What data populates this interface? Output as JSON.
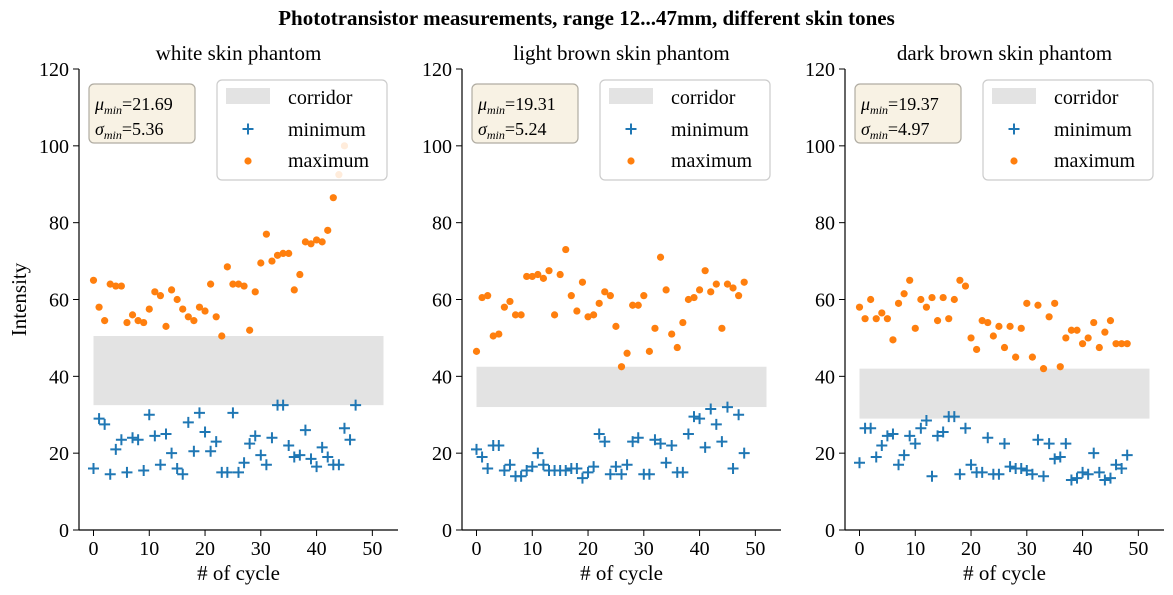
{
  "suptitle": "Phototransistor measurements, range 12...47mm, different skin tones",
  "legend_labels": {
    "corridor": "corridor",
    "minimum": "minimum",
    "maximum": "maximum"
  },
  "colors": {
    "minimum": "#1f77b4",
    "maximum": "#ff7f0e",
    "corridor": "#e3e3e3",
    "statsbox_fill": "#f8f2e4",
    "statsbox_edge": "#b0aca2"
  },
  "chart_data": [
    {
      "type": "scatter",
      "title": "white skin phantom",
      "xlabel": "# of cycle",
      "ylabel": "Intensity",
      "xlim": [
        -2.6,
        54.6
      ],
      "ylim": [
        0,
        120
      ],
      "xticks": [
        0,
        10,
        20,
        30,
        40,
        50
      ],
      "yticks": [
        0,
        20,
        40,
        60,
        80,
        100,
        120
      ],
      "stats": {
        "mu_label": "μmin",
        "mu": "21.69",
        "sigma_label": "σmin",
        "sigma": "5.36"
      },
      "corridor": {
        "x": [
          0,
          52
        ],
        "y": [
          32.5,
          50.5
        ]
      },
      "series": [
        {
          "name": "minimum",
          "marker": "plus",
          "x": [
            0,
            1,
            2,
            3,
            4,
            5,
            6,
            7,
            8,
            9,
            10,
            11,
            12,
            13,
            14,
            15,
            16,
            17,
            18,
            19,
            20,
            21,
            22,
            23,
            24,
            25,
            26,
            27,
            28,
            29,
            30,
            31,
            32,
            33,
            34,
            35,
            36,
            37,
            38,
            39,
            40,
            41,
            42,
            43,
            44,
            45,
            46,
            47
          ],
          "y": [
            16,
            29,
            27.5,
            14.5,
            21,
            23.5,
            15,
            24,
            23.5,
            15.5,
            30,
            24.5,
            17,
            25,
            20,
            16,
            14.5,
            28,
            20.5,
            30.5,
            25.5,
            20.5,
            23,
            15,
            15,
            30.5,
            15,
            17.5,
            22.5,
            24.5,
            19.5,
            17,
            24,
            32.5,
            32.5,
            22,
            19,
            19.5,
            26,
            18.5,
            16.5,
            21.5,
            19,
            17,
            17,
            26.5,
            23.5,
            32.5
          ]
        },
        {
          "name": "maximum",
          "marker": "dot",
          "x": [
            0,
            1,
            2,
            3,
            4,
            5,
            6,
            7,
            8,
            9,
            10,
            11,
            12,
            13,
            14,
            15,
            16,
            17,
            18,
            19,
            20,
            21,
            22,
            23,
            24,
            25,
            26,
            27,
            28,
            29,
            30,
            31,
            32,
            33,
            34,
            35,
            36,
            37,
            38,
            39,
            40,
            41,
            42,
            43,
            44,
            45
          ],
          "y": [
            65,
            58,
            54.5,
            64,
            63.5,
            63.5,
            54,
            56,
            54.5,
            54,
            57.5,
            62,
            61,
            53,
            62.5,
            60,
            57.5,
            55.5,
            54.5,
            58,
            57,
            64,
            55.5,
            50.5,
            68.5,
            64,
            64,
            63.5,
            52,
            62,
            69.5,
            77,
            70,
            71.5,
            72,
            72,
            62.5,
            66.5,
            75,
            74.5,
            75.5,
            75,
            78,
            86.5,
            92.5,
            100
          ]
        }
      ]
    },
    {
      "type": "scatter",
      "title": "light brown skin phantom",
      "xlabel": "# of cycle",
      "ylabel": "",
      "xlim": [
        -2.6,
        54.6
      ],
      "ylim": [
        0,
        120
      ],
      "xticks": [
        0,
        10,
        20,
        30,
        40,
        50
      ],
      "yticks": [
        0,
        20,
        40,
        60,
        80,
        100,
        120
      ],
      "stats": {
        "mu_label": "μmin",
        "mu": "19.31",
        "sigma_label": "σmin",
        "sigma": "5.24"
      },
      "corridor": {
        "x": [
          0,
          52
        ],
        "y": [
          32,
          42.5
        ]
      },
      "series": [
        {
          "name": "minimum",
          "marker": "plus",
          "x": [
            0,
            1,
            2,
            3,
            4,
            5,
            6,
            7,
            8,
            9,
            10,
            11,
            12,
            13,
            14,
            15,
            16,
            17,
            18,
            19,
            20,
            21,
            22,
            23,
            24,
            25,
            26,
            27,
            28,
            29,
            30,
            31,
            32,
            33,
            34,
            35,
            36,
            37,
            38,
            39,
            40,
            41,
            42,
            43,
            44,
            45,
            46,
            47,
            48
          ],
          "y": [
            21,
            19,
            16,
            22,
            22,
            15.5,
            17,
            14,
            14,
            15.5,
            16.5,
            20,
            17,
            15.5,
            15.5,
            15.5,
            15.5,
            16,
            16,
            13.5,
            15,
            16.5,
            25,
            23,
            14.5,
            16.5,
            14.5,
            17,
            23,
            24,
            14.5,
            14.5,
            23.5,
            22.5,
            17.5,
            22,
            15,
            15,
            25,
            29.5,
            29,
            21.5,
            31.5,
            27.5,
            23,
            32,
            16,
            30,
            20
          ]
        },
        {
          "name": "maximum",
          "marker": "dot",
          "x": [
            0,
            1,
            2,
            3,
            4,
            5,
            6,
            7,
            8,
            9,
            10,
            11,
            12,
            13,
            14,
            15,
            16,
            17,
            18,
            19,
            20,
            21,
            22,
            23,
            24,
            25,
            26,
            27,
            28,
            29,
            30,
            31,
            32,
            33,
            34,
            35,
            36,
            37,
            38,
            39,
            40,
            41,
            42,
            43,
            44,
            45,
            46,
            47,
            48
          ],
          "y": [
            46.5,
            60.5,
            61,
            50.5,
            51,
            58,
            59.5,
            56,
            56,
            66,
            66,
            66.5,
            65.5,
            67.5,
            56,
            66.5,
            73,
            61,
            57,
            64.5,
            55.5,
            56,
            59,
            62,
            61,
            53,
            42.5,
            46,
            58.5,
            58.5,
            61,
            46.5,
            52.5,
            71,
            62.5,
            51,
            47.5,
            54,
            60,
            60.5,
            62.5,
            67.5,
            62,
            64,
            52.5,
            64,
            63,
            61,
            64.5
          ]
        }
      ]
    },
    {
      "type": "scatter",
      "title": "dark brown skin phantom",
      "xlabel": "# of cycle",
      "ylabel": "",
      "xlim": [
        -2.6,
        54.6
      ],
      "ylim": [
        0,
        120
      ],
      "xticks": [
        0,
        10,
        20,
        30,
        40,
        50
      ],
      "yticks": [
        0,
        20,
        40,
        60,
        80,
        100,
        120
      ],
      "stats": {
        "mu_label": "μmin",
        "mu": "19.37",
        "sigma_label": "σmin",
        "sigma": "4.97"
      },
      "corridor": {
        "x": [
          0,
          52
        ],
        "y": [
          29,
          42
        ]
      },
      "series": [
        {
          "name": "minimum",
          "marker": "plus",
          "x": [
            0,
            1,
            2,
            3,
            4,
            5,
            6,
            7,
            8,
            9,
            10,
            11,
            12,
            13,
            14,
            15,
            16,
            17,
            18,
            19,
            20,
            21,
            22,
            23,
            24,
            25,
            26,
            27,
            28,
            29,
            30,
            31,
            32,
            33,
            34,
            35,
            36,
            37,
            38,
            39,
            40,
            41,
            42,
            43,
            44,
            45,
            46,
            47,
            48
          ],
          "y": [
            17.5,
            26.5,
            26.5,
            19,
            22,
            24.5,
            25,
            17,
            19.5,
            24.5,
            22.5,
            26.5,
            28.5,
            14,
            24.5,
            25.5,
            29.5,
            29.5,
            14.5,
            26.5,
            17,
            15,
            15,
            24,
            14.5,
            14.5,
            22.5,
            16.5,
            16,
            16,
            15.5,
            14.5,
            23.5,
            14,
            22.5,
            18.5,
            19,
            22.5,
            13,
            13.5,
            15,
            14.5,
            20,
            15,
            13,
            13.5,
            17,
            16,
            19.5
          ]
        },
        {
          "name": "maximum",
          "marker": "dot",
          "x": [
            0,
            1,
            2,
            3,
            4,
            5,
            6,
            7,
            8,
            9,
            10,
            11,
            12,
            13,
            14,
            15,
            16,
            17,
            18,
            19,
            20,
            21,
            22,
            23,
            24,
            25,
            26,
            27,
            28,
            29,
            30,
            31,
            32,
            33,
            34,
            35,
            36,
            37,
            38,
            39,
            40,
            41,
            42,
            43,
            44,
            45,
            46,
            47,
            48
          ],
          "y": [
            58,
            55,
            60,
            55,
            56.5,
            55,
            49.5,
            59,
            61.5,
            65,
            52.5,
            60,
            58,
            60.5,
            54.5,
            60.5,
            55,
            60,
            65,
            63.5,
            50,
            47,
            54.5,
            54,
            50.5,
            53,
            47.5,
            53,
            45,
            52.5,
            59,
            45,
            58.5,
            42,
            55.5,
            59,
            42.5,
            50,
            52,
            52,
            48.5,
            50,
            54,
            47.5,
            51.5,
            54.5,
            48.5,
            48.5,
            48.5
          ]
        }
      ]
    }
  ]
}
